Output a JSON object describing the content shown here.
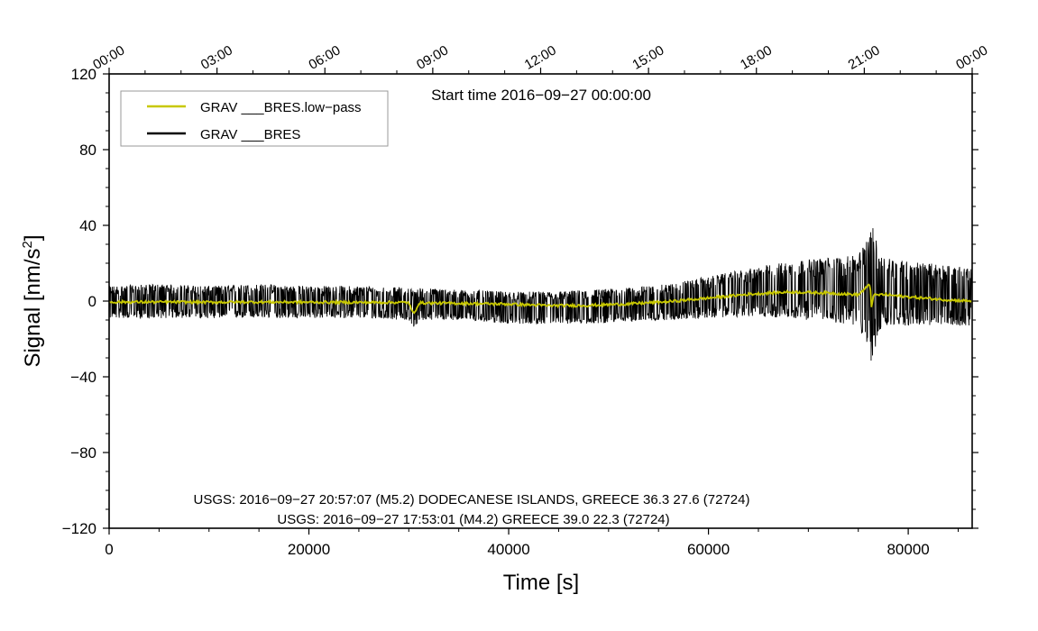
{
  "chart_data": {
    "type": "line",
    "xlabel": "Time [s]",
    "ylabel_main": "Signal [nm/s",
    "ylabel_sup": "2",
    "ylabel_end": "]",
    "xlim": [
      0,
      86400
    ],
    "ylim": [
      -120,
      120
    ],
    "x_ticks": [
      {
        "value": 0,
        "label": "0"
      },
      {
        "value": 20000,
        "label": "20000"
      },
      {
        "value": 40000,
        "label": "40000"
      },
      {
        "value": 60000,
        "label": "60000"
      },
      {
        "value": 80000,
        "label": "80000"
      }
    ],
    "y_ticks": [
      {
        "value": 120,
        "label": "120"
      },
      {
        "value": 80,
        "label": "80"
      },
      {
        "value": 40,
        "label": "40"
      },
      {
        "value": 0,
        "label": "0"
      },
      {
        "value": -40,
        "label": "−40"
      },
      {
        "value": -80,
        "label": "−80"
      },
      {
        "value": -120,
        "label": "−120"
      }
    ],
    "top_axis_ticks": [
      {
        "value": 0,
        "label": "00:00"
      },
      {
        "value": 10800,
        "label": "03:00"
      },
      {
        "value": 21600,
        "label": "06:00"
      },
      {
        "value": 32400,
        "label": "09:00"
      },
      {
        "value": 43200,
        "label": "12:00"
      },
      {
        "value": 54000,
        "label": "15:00"
      },
      {
        "value": 64800,
        "label": "18:00"
      },
      {
        "value": 75600,
        "label": "21:00"
      },
      {
        "value": 86400,
        "label": "00:00"
      }
    ],
    "start_time_label": "Start time 2016−09−27 00:00:00",
    "legend_placement": "top-left",
    "legend": [
      {
        "name": "GRAV ___BRES.low−pass",
        "color": "#c8c800"
      },
      {
        "name": "GRAV ___BRES",
        "color": "#000000"
      }
    ],
    "series": [
      {
        "name": "GRAV ___BRES",
        "color": "#000000",
        "kind": "noise-band",
        "x": [
          0,
          5000,
          10000,
          15000,
          20000,
          25000,
          30000,
          30500,
          31000,
          35000,
          40000,
          44000,
          48000,
          52000,
          56000,
          60000,
          64000,
          68000,
          72000,
          75000,
          76300,
          77500,
          80000,
          84000,
          86400
        ],
        "upper": [
          8,
          9,
          8,
          9,
          8,
          8,
          7,
          6,
          7,
          6,
          5,
          5,
          6,
          7,
          9,
          13,
          17,
          21,
          23,
          24,
          41,
          24,
          21,
          19,
          17
        ],
        "lower": [
          -9,
          -9,
          -9,
          -9,
          -9,
          -9,
          -10,
          -16,
          -10,
          -10,
          -12,
          -12,
          -12,
          -11,
          -10,
          -9,
          -8,
          -9,
          -11,
          -13,
          -32,
          -13,
          -13,
          -13,
          -13
        ]
      },
      {
        "name": "GRAV ___BRES.low−pass",
        "color": "#c8c800",
        "x": [
          0,
          5000,
          10000,
          15000,
          20000,
          25000,
          30000,
          30300,
          30500,
          31000,
          35000,
          40000,
          44000,
          48000,
          52000,
          56000,
          60000,
          64000,
          68000,
          72000,
          75000,
          76200,
          76300,
          76500,
          77500,
          80000,
          84000,
          86400
        ],
        "y": [
          -0.5,
          -0.5,
          -0.6,
          -0.5,
          -0.6,
          -0.7,
          -0.7,
          -5,
          -7,
          -1,
          -1.2,
          -1.6,
          -2.4,
          -2.3,
          -1.5,
          -0.3,
          1.6,
          3.6,
          4.8,
          4.3,
          3.3,
          9,
          -4,
          3,
          3.5,
          2.2,
          0.6,
          0
        ]
      }
    ],
    "annotations": [
      "USGS: 2016−09−27 20:57:07 (M5.2) DODECANESE ISLANDS, GREECE 36.3 27.6 (72724)",
      "USGS: 2016−09−27 17:53:01 (M4.2) GREECE 39.0 22.3 (72724)"
    ],
    "grid": false
  }
}
